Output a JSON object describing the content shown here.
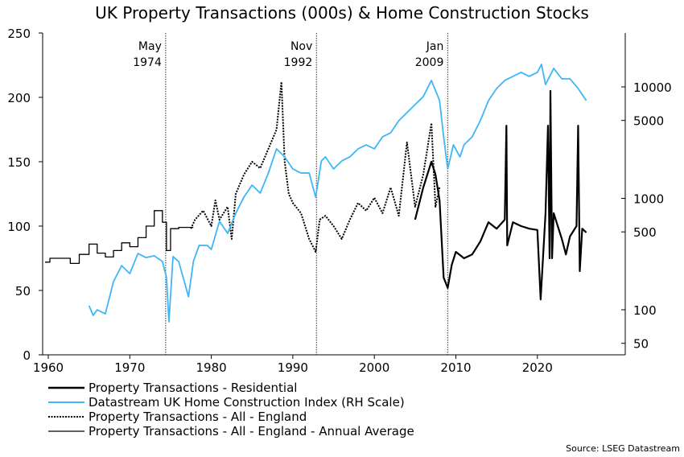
{
  "chart_data": {
    "type": "line",
    "title": "UK Property Transactions (000s) & Home Construction Stocks",
    "source": "Source: LSEG Datastream",
    "x_axis": {
      "range": [
        1959,
        2030
      ],
      "ticks": [
        "1960",
        "1970",
        "1980",
        "1990",
        "2000",
        "2010",
        "2020"
      ]
    },
    "y_left": {
      "range": [
        0,
        250
      ],
      "ticks": [
        "0",
        "50",
        "100",
        "150",
        "200",
        "250"
      ]
    },
    "y_right": {
      "scale": "log",
      "range": [
        40,
        25000
      ],
      "ticks": [
        "50",
        "100",
        "500",
        "1000",
        "5000",
        "10000"
      ]
    },
    "grid": false,
    "legend_position": "bottom-left",
    "annotations": [
      {
        "year": 1974.4,
        "line1": "May",
        "line2": "1974"
      },
      {
        "year": 1992.9,
        "line1": "Nov",
        "line2": "1992"
      },
      {
        "year": 2009.0,
        "line1": "Jan",
        "line2": "2009"
      }
    ],
    "series": [
      {
        "name": "Property Transactions - Residential",
        "axis": "left",
        "color": "#000000",
        "style": "solid-thick",
        "x": [
          2005,
          2006,
          2007,
          2007.5,
          2008,
          2008.5,
          2009,
          2009.5,
          2010,
          2011,
          2012,
          2013,
          2014,
          2015,
          2016,
          2016.2,
          2016.3,
          2017,
          2018,
          2019,
          2020,
          2020.4,
          2021,
          2021.3,
          2021.5,
          2021.6,
          2021.8,
          2022,
          2023,
          2023.5,
          2024,
          2024.8,
          2025,
          2025.2,
          2025.5,
          2026
        ],
        "y": [
          105,
          130,
          150,
          140,
          120,
          60,
          52,
          70,
          80,
          75,
          78,
          88,
          103,
          98,
          105,
          178,
          85,
          103,
          100,
          98,
          97,
          43,
          110,
          178,
          75,
          205,
          75,
          110,
          90,
          78,
          92,
          100,
          178,
          65,
          98,
          95
        ]
      },
      {
        "name": "Datastream UK Home Construction Index (RH Scale)",
        "axis": "right",
        "color": "#3fb6f5",
        "style": "solid",
        "x": [
          1965,
          1965.5,
          1966,
          1967,
          1968,
          1969,
          1970,
          1971,
          1972,
          1973,
          1974,
          1974.5,
          1974.8,
          1975.3,
          1976,
          1977.2,
          1977.8,
          1978.5,
          1979.5,
          1980,
          1981,
          1982,
          1983,
          1984,
          1985,
          1986,
          1987,
          1988,
          1989,
          1990,
          1991,
          1992,
          1992.8,
          1993.5,
          1994,
          1995,
          1996,
          1997,
          1998,
          1999,
          2000,
          2001,
          2002,
          2003,
          2004,
          2005,
          2006,
          2007,
          2008,
          2008.5,
          2009,
          2009.7,
          2010.5,
          2011,
          2012,
          2013,
          2014,
          2015,
          2016,
          2017,
          2018,
          2019,
          2020,
          2020.5,
          2021,
          2022,
          2023,
          2024,
          2025,
          2026
        ],
        "y": [
          109,
          89,
          100,
          92,
          179,
          249,
          211,
          320,
          294,
          305,
          271,
          195,
          78,
          300,
          271,
          131,
          271,
          378,
          378,
          348,
          622,
          485,
          735,
          1026,
          1315,
          1114,
          1687,
          2780,
          2355,
          1836,
          1687,
          1687,
          1026,
          2168,
          2355,
          1836,
          2168,
          2355,
          2780,
          3020,
          2780,
          3565,
          3875,
          4975,
          5870,
          6935,
          8185,
          11430,
          7535,
          3565,
          1836,
          3020,
          2355,
          3020,
          3565,
          4975,
          7535,
          9680,
          11430,
          12420,
          13490,
          12420,
          13490,
          15920,
          10500,
          14660,
          11810,
          11810,
          9680,
          7535
        ]
      },
      {
        "name": "Property Transactions - All - England",
        "axis": "left",
        "color": "#000000",
        "style": "dotted",
        "x": [
          1977.5,
          1978,
          1979,
          1980,
          1980.5,
          1981,
          1982,
          1982.5,
          1983,
          1984,
          1985,
          1986,
          1987,
          1988,
          1988.6,
          1989,
          1989.5,
          1990,
          1991,
          1992,
          1992.8,
          1993.3,
          1994,
          1995,
          1996,
          1997,
          1998,
          1999,
          2000,
          2001,
          2002,
          2003,
          2004,
          2005,
          2006,
          2007,
          2007.5,
          2008
        ],
        "y": [
          98,
          105,
          112,
          100,
          120,
          105,
          115,
          90,
          125,
          140,
          150,
          145,
          160,
          175,
          212,
          150,
          125,
          118,
          110,
          90,
          80,
          105,
          108,
          100,
          90,
          105,
          118,
          112,
          122,
          110,
          130,
          108,
          165,
          115,
          140,
          180,
          115,
          130
        ]
      },
      {
        "name": "Property Transactions - All - England - Annual Average",
        "axis": "left",
        "color": "#000000",
        "style": "step-thin",
        "x": [
          1959.6,
          1960.2,
          1962.7,
          1963.8,
          1965,
          1966,
          1967,
          1968,
          1969,
          1970,
          1971,
          1972,
          1973,
          1974,
          1974.5,
          1975,
          1976,
          1977
        ],
        "y": [
          72,
          75,
          71,
          78,
          86,
          79,
          76,
          81,
          87,
          84,
          91,
          100,
          112,
          103,
          81,
          98,
          99,
          99
        ]
      }
    ]
  }
}
